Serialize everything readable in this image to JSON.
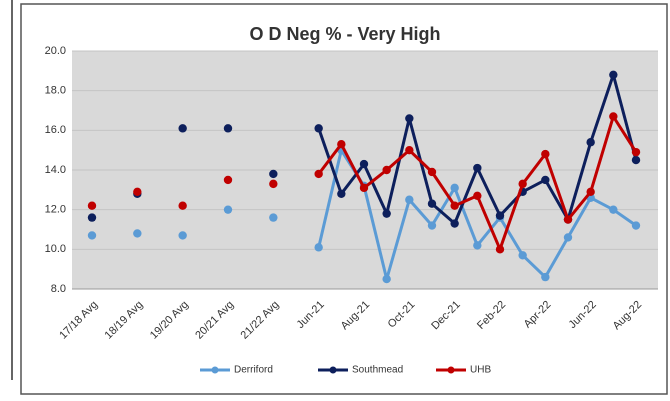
{
  "chart_data": {
    "type": "line",
    "title": "O D Neg % - Very High",
    "categories": [
      "17/18 Avg",
      null,
      "18/19 Avg",
      null,
      "19/20 Avg",
      null,
      "20/21 Avg",
      null,
      "21/22 Avg",
      null,
      "Jun-21",
      null,
      "Aug-21",
      null,
      "Oct-21",
      null,
      "Dec-21",
      null,
      "Feb-22",
      null,
      "Apr-22",
      null,
      "Jun-22",
      null,
      "Aug-22"
    ],
    "series": [
      {
        "name": "Derriford",
        "color": "#5b9bd5",
        "values": [
          10.7,
          null,
          10.8,
          null,
          10.7,
          null,
          12.0,
          null,
          11.6,
          null,
          10.1,
          15.0,
          13.2,
          8.5,
          12.5,
          11.2,
          13.1,
          10.2,
          11.6,
          9.7,
          8.6,
          10.6,
          12.6,
          12.0,
          11.2
        ]
      },
      {
        "name": "Southmead",
        "color": "#0d1f5c",
        "values": [
          11.6,
          null,
          12.8,
          null,
          16.1,
          null,
          16.1,
          null,
          13.8,
          null,
          16.1,
          12.8,
          14.3,
          11.8,
          16.6,
          12.3,
          11.3,
          14.1,
          11.7,
          12.9,
          13.5,
          11.5,
          15.4,
          18.8,
          14.5
        ]
      },
      {
        "name": "UHB",
        "color": "#c00000",
        "values": [
          12.2,
          null,
          12.9,
          null,
          12.2,
          null,
          13.5,
          null,
          13.3,
          null,
          13.8,
          15.3,
          13.1,
          14.0,
          15.0,
          13.9,
          12.2,
          12.7,
          10.0,
          13.3,
          14.8,
          11.5,
          12.9,
          16.7,
          14.9
        ]
      }
    ],
    "ylim": [
      8,
      20
    ],
    "yticks": [
      {
        "value": 8,
        "label": "8.0"
      },
      {
        "value": 10,
        "label": "10.0"
      },
      {
        "value": 12,
        "label": "12.0"
      },
      {
        "value": 14,
        "label": "14.0"
      },
      {
        "value": 16,
        "label": "16.0"
      },
      {
        "value": 18,
        "label": "18.0"
      },
      {
        "value": 20,
        "label": "20.0"
      }
    ],
    "grid": true,
    "legend": "bottom"
  }
}
